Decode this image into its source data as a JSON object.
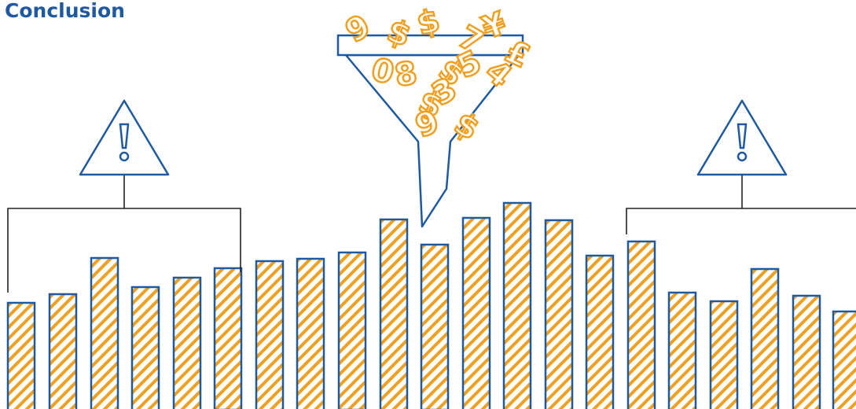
{
  "title": "Conclusion",
  "funnel_symbols": [
    "9",
    "$",
    "$",
    "7",
    "¥",
    "£",
    "0",
    "8",
    "$",
    "5",
    "4",
    "$",
    "3",
    "9",
    "$"
  ]
}
